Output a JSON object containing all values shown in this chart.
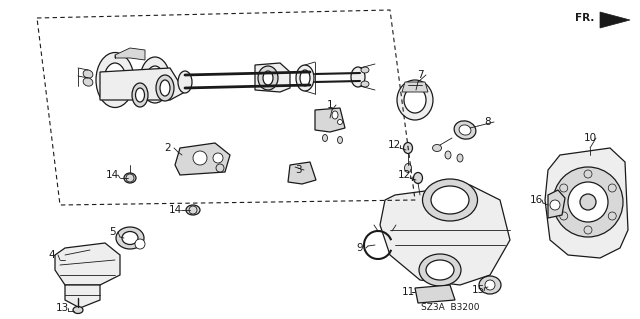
{
  "bg_color": "#ffffff",
  "fig_width": 6.4,
  "fig_height": 3.19,
  "diagram_code": "SZ3A  B3200",
  "fr_label": "FR.",
  "lc": "#1a1a1a",
  "lw_main": 0.9,
  "lw_thin": 0.6,
  "fs_label": 7.5,
  "fs_small": 6.5,
  "gray_fill": "#d8d8d8",
  "light_fill": "#eeeeee",
  "white_fill": "#ffffff"
}
